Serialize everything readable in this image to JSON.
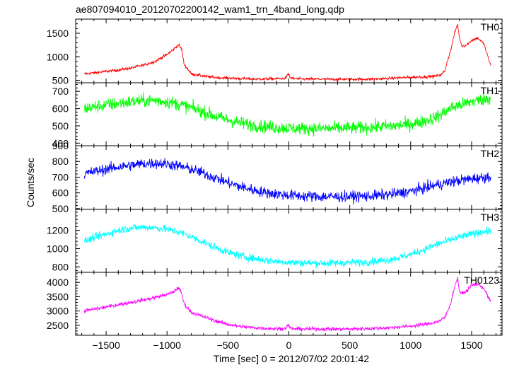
{
  "chart_data": {
    "type": "line",
    "title": "ae807094010_20120702200142_wam1_trn_4band_long.qdp",
    "xlabel": "Time [sec] 0 = 2012/07/02 20:01:42",
    "ylabel": "Counts/sec",
    "xlim": [
      -1750,
      1750
    ],
    "xticks": [
      -1500,
      -1000,
      -500,
      0,
      500,
      1000,
      1500
    ],
    "xtick_labels": [
      "−1500",
      "−1000",
      "−500",
      "0",
      "500",
      "1000",
      "1500"
    ],
    "panels": [
      {
        "name": "TH0",
        "color": "#ff0000",
        "noise": 30,
        "ylim": [
          450,
          1800
        ],
        "yticks": [
          500,
          1000,
          1500
        ],
        "ytick_labels": [
          "500",
          "1000",
          "1500"
        ],
        "x": [
          -1680,
          -1600,
          -1500,
          -1400,
          -1300,
          -1200,
          -1100,
          -1000,
          -950,
          -905,
          -880,
          -860,
          -800,
          -700,
          -600,
          -500,
          -400,
          -300,
          -200,
          -100,
          -30,
          0,
          10,
          30,
          100,
          200,
          300,
          400,
          500,
          600,
          700,
          800,
          900,
          1000,
          1100,
          1200,
          1250,
          1280,
          1300,
          1330,
          1360,
          1385,
          1400,
          1420,
          1460,
          1500,
          1550,
          1600,
          1640,
          1660
        ],
        "y": [
          640,
          660,
          690,
          720,
          760,
          820,
          900,
          1050,
          1150,
          1260,
          1160,
          840,
          640,
          590,
          560,
          550,
          540,
          530,
          530,
          535,
          545,
          640,
          560,
          540,
          530,
          530,
          525,
          525,
          525,
          525,
          530,
          540,
          555,
          565,
          575,
          590,
          620,
          700,
          900,
          1150,
          1500,
          1700,
          1400,
          1230,
          1250,
          1350,
          1400,
          1280,
          950,
          800
        ]
      },
      {
        "name": "TH1",
        "color": "#00ff00",
        "noise": 38,
        "ylim": [
          385,
          750
        ],
        "yticks": [
          400,
          500,
          600,
          700
        ],
        "ytick_labels": [
          "400",
          "500",
          "600",
          "700"
        ],
        "x": [
          -1680,
          -1600,
          -1500,
          -1400,
          -1300,
          -1200,
          -1100,
          -1000,
          -900,
          -800,
          -700,
          -600,
          -500,
          -400,
          -300,
          -200,
          -100,
          0,
          100,
          200,
          300,
          400,
          500,
          600,
          700,
          800,
          900,
          1000,
          1100,
          1200,
          1250,
          1300,
          1350,
          1400,
          1450,
          1500,
          1550,
          1600,
          1660
        ],
        "y": [
          600,
          610,
          620,
          630,
          640,
          645,
          648,
          640,
          625,
          605,
          580,
          555,
          535,
          518,
          505,
          497,
          490,
          487,
          485,
          485,
          485,
          486,
          487,
          490,
          493,
          497,
          502,
          510,
          525,
          548,
          565,
          590,
          610,
          620,
          630,
          640,
          648,
          655,
          662
        ]
      },
      {
        "name": "TH2",
        "color": "#0000ff",
        "noise": 35,
        "ylim": [
          495,
          900
        ],
        "yticks": [
          500,
          600,
          700,
          800,
          900
        ],
        "ytick_labels": [
          "500",
          "600",
          "700",
          "800",
          "900"
        ],
        "x": [
          -1680,
          -1600,
          -1500,
          -1400,
          -1300,
          -1200,
          -1100,
          -1000,
          -900,
          -800,
          -700,
          -600,
          -500,
          -400,
          -300,
          -200,
          -100,
          0,
          100,
          200,
          300,
          400,
          500,
          600,
          700,
          800,
          900,
          1000,
          1100,
          1200,
          1300,
          1400,
          1500,
          1600,
          1660
        ],
        "y": [
          720,
          735,
          750,
          765,
          775,
          785,
          788,
          785,
          770,
          750,
          725,
          695,
          665,
          640,
          620,
          603,
          593,
          585,
          580,
          577,
          576,
          576,
          577,
          578,
          582,
          588,
          597,
          610,
          628,
          648,
          665,
          680,
          690,
          698,
          705
        ]
      },
      {
        "name": "TH3",
        "color": "#00ffff",
        "noise": 42,
        "ylim": [
          740,
          1430
        ],
        "yticks": [
          800,
          1000,
          1200
        ],
        "ytick_labels": [
          "800",
          "1000",
          "1200"
        ],
        "x": [
          -1680,
          -1600,
          -1500,
          -1400,
          -1300,
          -1200,
          -1100,
          -1000,
          -900,
          -800,
          -700,
          -600,
          -500,
          -400,
          -300,
          -200,
          -100,
          0,
          100,
          200,
          300,
          400,
          500,
          600,
          700,
          800,
          900,
          1000,
          1100,
          1200,
          1300,
          1400,
          1500,
          1600,
          1660
        ],
        "y": [
          1080,
          1120,
          1160,
          1200,
          1225,
          1235,
          1230,
          1210,
          1180,
          1130,
          1070,
          1010,
          960,
          920,
          895,
          875,
          860,
          850,
          845,
          843,
          842,
          843,
          845,
          850,
          860,
          875,
          900,
          935,
          985,
          1040,
          1085,
          1125,
          1160,
          1185,
          1195
        ]
      },
      {
        "name": "TH0123",
        "color": "#ff00ff",
        "noise": 65,
        "ylim": [
          2150,
          4350
        ],
        "yticks": [
          2500,
          3000,
          3500,
          4000
        ],
        "ytick_labels": [
          "2500",
          "3000",
          "3500",
          "4000"
        ],
        "x": [
          -1680,
          -1600,
          -1500,
          -1400,
          -1300,
          -1200,
          -1100,
          -1000,
          -950,
          -905,
          -880,
          -860,
          -800,
          -700,
          -600,
          -500,
          -400,
          -300,
          -200,
          -100,
          -30,
          0,
          10,
          30,
          100,
          200,
          300,
          400,
          500,
          600,
          700,
          800,
          900,
          1000,
          1100,
          1200,
          1250,
          1280,
          1300,
          1330,
          1360,
          1385,
          1400,
          1420,
          1460,
          1500,
          1550,
          1600,
          1640,
          1660
        ],
        "y": [
          3000,
          3060,
          3140,
          3220,
          3300,
          3380,
          3470,
          3580,
          3660,
          3820,
          3600,
          3250,
          2950,
          2800,
          2650,
          2530,
          2460,
          2420,
          2390,
          2380,
          2390,
          2520,
          2400,
          2380,
          2370,
          2370,
          2370,
          2370,
          2370,
          2380,
          2390,
          2410,
          2440,
          2470,
          2520,
          2600,
          2680,
          2780,
          2950,
          3300,
          3850,
          4150,
          3700,
          3600,
          3700,
          3900,
          3950,
          3800,
          3450,
          3300
        ]
      }
    ]
  }
}
